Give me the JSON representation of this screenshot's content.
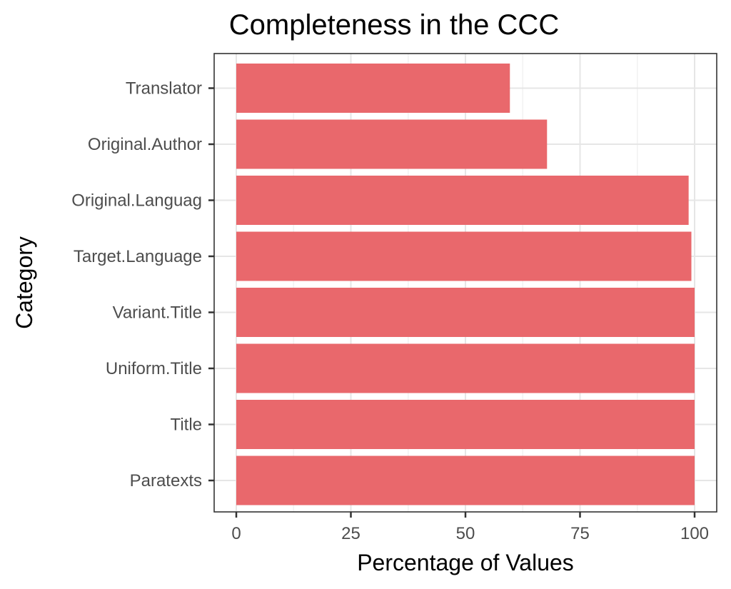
{
  "chart_data": {
    "type": "bar",
    "orientation": "horizontal",
    "title": "Completeness in the CCC",
    "xlabel": "Percentage of Values",
    "ylabel": "Category",
    "categories": [
      "Paratexts",
      "Title",
      "Uniform.Title",
      "Variant.Title",
      "Target.Language",
      "Original.Languag",
      "Original.Author",
      "Translator"
    ],
    "values": [
      100,
      100,
      100,
      100,
      99.3,
      98.7,
      67.8,
      59.7
    ],
    "xlim": [
      0,
      100
    ],
    "xticks": [
      "0",
      "25",
      "50",
      "75",
      "100"
    ],
    "grid": true,
    "bar_color": "#E9686C"
  }
}
